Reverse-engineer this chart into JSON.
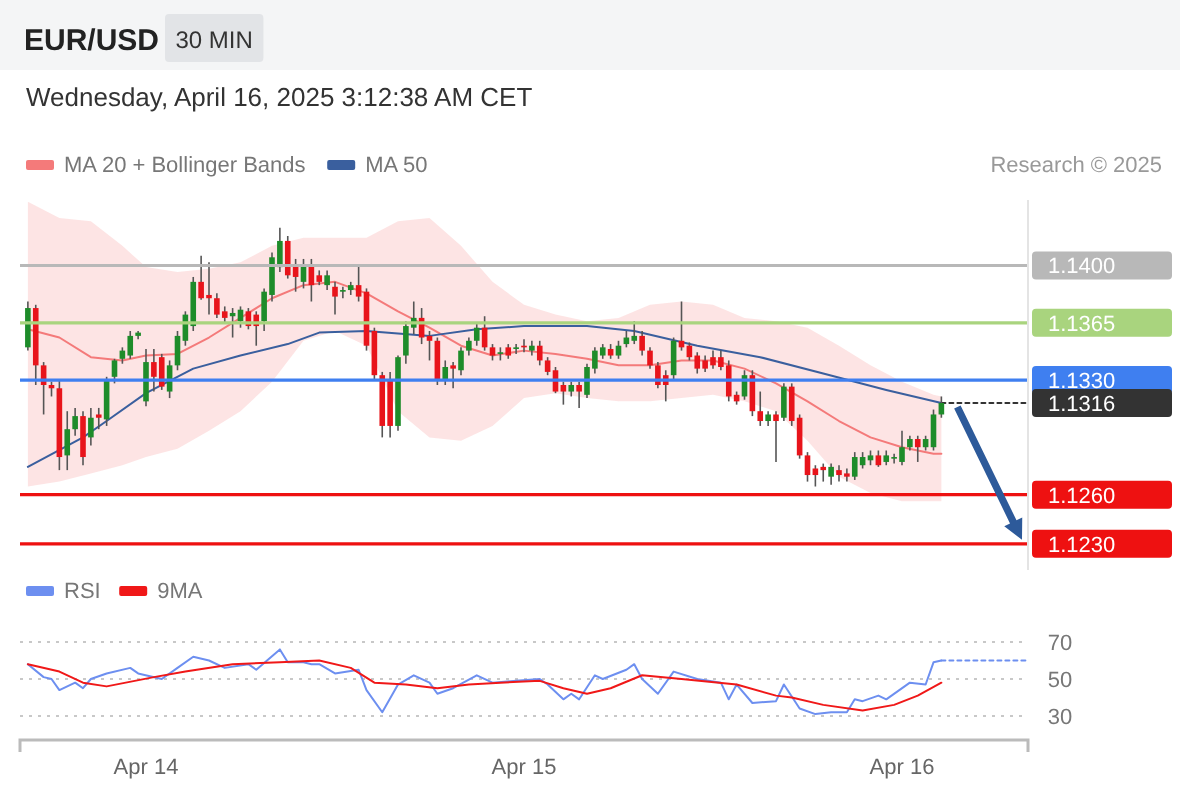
{
  "chart_data": [
    {
      "type": "candlestick",
      "title": "EUR/USD",
      "subtitle": "Wednesday, April 16, 2025 3:12:38 AM CET",
      "annotations": [
        "30 MIN",
        "Research © 2025"
      ],
      "x": [
        "2025-04-13T16:30",
        "2025-04-13T17:00",
        "2025-04-13T17:30",
        "2025-04-13T18:00",
        "2025-04-13T18:30",
        "2025-04-13T19:00",
        "2025-04-13T19:30",
        "2025-04-13T20:00",
        "2025-04-13T20:30",
        "2025-04-13T21:00",
        "2025-04-13T21:30",
        "2025-04-13T22:00",
        "2025-04-13T22:30",
        "2025-04-13T23:00",
        "2025-04-13T23:30",
        "2025-04-14T00:00",
        "2025-04-14T00:30",
        "2025-04-14T01:00",
        "2025-04-14T01:30",
        "2025-04-14T02:00",
        "2025-04-14T02:30",
        "2025-04-14T03:00",
        "2025-04-14T03:30",
        "2025-04-14T04:00",
        "2025-04-14T04:30",
        "2025-04-14T05:00",
        "2025-04-14T05:30",
        "2025-04-14T06:00",
        "2025-04-14T06:30",
        "2025-04-14T07:00",
        "2025-04-14T07:30",
        "2025-04-14T08:00",
        "2025-04-14T08:30",
        "2025-04-14T09:00",
        "2025-04-14T09:30",
        "2025-04-14T10:00",
        "2025-04-14T10:30",
        "2025-04-14T11:00",
        "2025-04-14T11:30",
        "2025-04-14T12:00",
        "2025-04-14T12:30",
        "2025-04-14T13:00",
        "2025-04-14T13:30",
        "2025-04-14T14:00",
        "2025-04-14T14:30",
        "2025-04-14T15:00",
        "2025-04-14T15:30",
        "2025-04-14T16:00",
        "2025-04-14T16:30",
        "2025-04-14T17:00",
        "2025-04-14T17:30",
        "2025-04-14T18:00",
        "2025-04-14T18:30",
        "2025-04-14T19:00",
        "2025-04-14T19:30",
        "2025-04-14T20:00",
        "2025-04-14T20:30",
        "2025-04-14T21:00",
        "2025-04-14T21:30",
        "2025-04-14T22:00",
        "2025-04-14T22:30",
        "2025-04-14T23:00",
        "2025-04-14T23:30",
        "2025-04-15T00:00",
        "2025-04-15T00:30",
        "2025-04-15T01:00",
        "2025-04-15T01:30",
        "2025-04-15T02:00",
        "2025-04-15T02:30",
        "2025-04-15T03:00",
        "2025-04-15T03:30",
        "2025-04-15T04:00",
        "2025-04-15T04:30",
        "2025-04-15T05:00",
        "2025-04-15T05:30",
        "2025-04-15T06:00",
        "2025-04-15T06:30",
        "2025-04-15T07:00",
        "2025-04-15T07:30",
        "2025-04-15T08:00",
        "2025-04-15T08:30",
        "2025-04-15T09:00",
        "2025-04-15T09:30",
        "2025-04-15T10:00",
        "2025-04-15T10:30",
        "2025-04-15T11:00",
        "2025-04-15T11:30",
        "2025-04-15T12:00",
        "2025-04-15T12:30",
        "2025-04-15T13:00",
        "2025-04-15T13:30",
        "2025-04-15T14:00",
        "2025-04-15T14:30",
        "2025-04-15T15:00",
        "2025-04-15T15:30",
        "2025-04-15T16:00",
        "2025-04-15T16:30",
        "2025-04-15T17:00",
        "2025-04-15T17:30",
        "2025-04-15T18:00",
        "2025-04-15T18:30",
        "2025-04-15T19:00",
        "2025-04-15T19:30",
        "2025-04-15T20:00",
        "2025-04-15T20:30",
        "2025-04-15T21:00",
        "2025-04-15T21:30",
        "2025-04-15T22:00",
        "2025-04-15T22:30",
        "2025-04-15T23:00",
        "2025-04-15T23:30",
        "2025-04-16T00:00",
        "2025-04-16T00:30",
        "2025-04-16T01:00",
        "2025-04-16T01:30",
        "2025-04-16T02:00",
        "2025-04-16T02:30"
      ],
      "ohlc": [
        [
          1.135,
          1.1378,
          1.1348,
          1.1374
        ],
        [
          1.1374,
          1.1376,
          1.1327,
          1.1339
        ],
        [
          1.1339,
          1.1341,
          1.1309,
          1.1327
        ],
        [
          1.1327,
          1.1329,
          1.132,
          1.1325
        ],
        [
          1.1325,
          1.133,
          1.1275,
          1.1283
        ],
        [
          1.1284,
          1.1311,
          1.1275,
          1.13
        ],
        [
          1.13,
          1.1313,
          1.1296,
          1.1308
        ],
        [
          1.1308,
          1.1311,
          1.1278,
          1.1283
        ],
        [
          1.1295,
          1.1313,
          1.129,
          1.1307
        ],
        [
          1.1309,
          1.1313,
          1.13,
          1.1307
        ],
        [
          1.1306,
          1.1332,
          1.1302,
          1.133
        ],
        [
          1.1332,
          1.1343,
          1.1328,
          1.1342
        ],
        [
          1.1343,
          1.135,
          1.134,
          1.1348
        ],
        [
          1.1345,
          1.136,
          1.1343,
          1.1357
        ],
        [
          1.1357,
          1.136,
          1.1355,
          1.1359
        ],
        [
          1.1317,
          1.1349,
          1.1314,
          1.1341
        ],
        [
          1.1341,
          1.1349,
          1.1323,
          1.1332
        ],
        [
          1.1344,
          1.1346,
          1.1324,
          1.1326
        ],
        [
          1.1323,
          1.1342,
          1.1319,
          1.1339
        ],
        [
          1.1339,
          1.136,
          1.1336,
          1.1357
        ],
        [
          1.1354,
          1.1372,
          1.1351,
          1.137
        ],
        [
          1.1363,
          1.1393,
          1.136,
          1.139
        ],
        [
          1.139,
          1.1406,
          1.1379,
          1.138
        ],
        [
          1.1382,
          1.1402,
          1.137,
          1.138
        ],
        [
          1.138,
          1.1383,
          1.1368,
          1.137
        ],
        [
          1.1372,
          1.1375,
          1.1365,
          1.1368
        ],
        [
          1.1369,
          1.1374,
          1.1356,
          1.1371
        ],
        [
          1.1366,
          1.1375,
          1.1362,
          1.1373
        ],
        [
          1.1372,
          1.1374,
          1.1361,
          1.1363
        ],
        [
          1.137,
          1.1372,
          1.1351,
          1.1363
        ],
        [
          1.1366,
          1.1386,
          1.136,
          1.1384
        ],
        [
          1.1382,
          1.1408,
          1.1378,
          1.1405
        ],
        [
          1.1399,
          1.1423,
          1.1396,
          1.1415
        ],
        [
          1.1415,
          1.1418,
          1.1392,
          1.1394
        ],
        [
          1.14,
          1.1404,
          1.1384,
          1.1393
        ],
        [
          1.139,
          1.1404,
          1.1386,
          1.14
        ],
        [
          1.14,
          1.1404,
          1.1378,
          1.1388
        ],
        [
          1.1394,
          1.1397,
          1.1388,
          1.139
        ],
        [
          1.1388,
          1.1397,
          1.1385,
          1.1394
        ],
        [
          1.1387,
          1.139,
          1.137,
          1.1381
        ],
        [
          1.1384,
          1.1387,
          1.138,
          1.1385
        ],
        [
          1.1385,
          1.139,
          1.1382,
          1.1388
        ],
        [
          1.1388,
          1.14,
          1.1378,
          1.1381
        ],
        [
          1.1384,
          1.1386,
          1.1348,
          1.1351
        ],
        [
          1.136,
          1.1362,
          1.133,
          1.1333
        ],
        [
          1.1333,
          1.1335,
          1.1295,
          1.1302
        ],
        [
          1.133,
          1.1335,
          1.1295,
          1.1302
        ],
        [
          1.1302,
          1.1345,
          1.1299,
          1.1344
        ],
        [
          1.1345,
          1.1366,
          1.134,
          1.1363
        ],
        [
          1.1362,
          1.1378,
          1.1358,
          1.1368
        ],
        [
          1.1368,
          1.1374,
          1.1352,
          1.1356
        ],
        [
          1.1357,
          1.136,
          1.1342,
          1.1354
        ],
        [
          1.1354,
          1.1356,
          1.1327,
          1.133
        ],
        [
          1.133,
          1.1342,
          1.1327,
          1.1338
        ],
        [
          1.1339,
          1.1341,
          1.1325,
          1.1337
        ],
        [
          1.1336,
          1.135,
          1.1333,
          1.1348
        ],
        [
          1.1348,
          1.1356,
          1.1345,
          1.1354
        ],
        [
          1.1354,
          1.1365,
          1.1351,
          1.1362
        ],
        [
          1.1362,
          1.1369,
          1.1348,
          1.135
        ],
        [
          1.135,
          1.1352,
          1.1342,
          1.1345
        ],
        [
          1.1346,
          1.135,
          1.1342,
          1.1347
        ],
        [
          1.135,
          1.1352,
          1.1343,
          1.1345
        ],
        [
          1.1349,
          1.1352,
          1.1346,
          1.135
        ],
        [
          1.1351,
          1.1355,
          1.1347,
          1.135
        ],
        [
          1.1348,
          1.1354,
          1.1345,
          1.1351
        ],
        [
          1.1351,
          1.1354,
          1.1339,
          1.1342
        ],
        [
          1.1342,
          1.1344,
          1.1333,
          1.1335
        ],
        [
          1.1336,
          1.1338,
          1.1322,
          1.1323
        ],
        [
          1.1327,
          1.1329,
          1.1315,
          1.1323
        ],
        [
          1.1323,
          1.1329,
          1.132,
          1.1327
        ],
        [
          1.1327,
          1.1329,
          1.1313,
          1.1323
        ],
        [
          1.1321,
          1.134,
          1.1319,
          1.1338
        ],
        [
          1.1337,
          1.135,
          1.1334,
          1.1348
        ],
        [
          1.1345,
          1.1352,
          1.1343,
          1.135
        ],
        [
          1.1349,
          1.1352,
          1.1343,
          1.1345
        ],
        [
          1.1345,
          1.1354,
          1.1343,
          1.1351
        ],
        [
          1.1352,
          1.136,
          1.135,
          1.1356
        ],
        [
          1.1354,
          1.1366,
          1.1352,
          1.1357
        ],
        [
          1.1357,
          1.136,
          1.1345,
          1.1348
        ],
        [
          1.1348,
          1.135,
          1.1337,
          1.1339
        ],
        [
          1.1339,
          1.1341,
          1.1325,
          1.1327
        ],
        [
          1.1333,
          1.1336,
          1.1317,
          1.1327
        ],
        [
          1.1333,
          1.1356,
          1.133,
          1.1354
        ],
        [
          1.1354,
          1.1378,
          1.1348,
          1.135
        ],
        [
          1.1351,
          1.1353,
          1.1342,
          1.1344
        ],
        [
          1.1345,
          1.1347,
          1.1334,
          1.1337
        ],
        [
          1.1342,
          1.1345,
          1.1335,
          1.1337
        ],
        [
          1.1344,
          1.1348,
          1.1337,
          1.1339
        ],
        [
          1.1344,
          1.1348,
          1.1336,
          1.1338
        ],
        [
          1.1339,
          1.1342,
          1.1317,
          1.132
        ],
        [
          1.1321,
          1.1323,
          1.1315,
          1.1317
        ],
        [
          1.132,
          1.1336,
          1.1318,
          1.1333
        ],
        [
          1.1333,
          1.1336,
          1.1308,
          1.1311
        ],
        [
          1.1311,
          1.1323,
          1.1302,
          1.1305
        ],
        [
          1.1305,
          1.1311,
          1.1302,
          1.1309
        ],
        [
          1.1309,
          1.1311,
          1.128,
          1.1305
        ],
        [
          1.1307,
          1.1328,
          1.1305,
          1.1326
        ],
        [
          1.1326,
          1.1328,
          1.1302,
          1.1305
        ],
        [
          1.1307,
          1.1309,
          1.1282,
          1.1284
        ],
        [
          1.1284,
          1.1286,
          1.1268,
          1.1272
        ],
        [
          1.1276,
          1.1278,
          1.1265,
          1.1272
        ],
        [
          1.1277,
          1.1279,
          1.1268,
          1.1275
        ],
        [
          1.1271,
          1.1279,
          1.1266,
          1.1277
        ],
        [
          1.1275,
          1.1278,
          1.1268,
          1.1272
        ],
        [
          1.1273,
          1.1276,
          1.1268,
          1.1271
        ],
        [
          1.1271,
          1.1286,
          1.1269,
          1.1283
        ],
        [
          1.1278,
          1.1286,
          1.1276,
          1.1283
        ],
        [
          1.1281,
          1.1287,
          1.1278,
          1.1284
        ],
        [
          1.1284,
          1.1287,
          1.1277,
          1.1278
        ],
        [
          1.128,
          1.1287,
          1.1278,
          1.1284
        ],
        [
          1.1282,
          1.1285,
          1.1279,
          1.1283
        ],
        [
          1.128,
          1.1299,
          1.1278,
          1.1289
        ],
        [
          1.1289,
          1.1296,
          1.1287,
          1.1294
        ],
        [
          1.1294,
          1.1296,
          1.128,
          1.1289
        ],
        [
          1.1289,
          1.1296,
          1.1287,
          1.1294
        ],
        [
          1.1289,
          1.1312,
          1.1287,
          1.1309
        ],
        [
          1.1309,
          1.132,
          1.1307,
          1.1316
        ]
      ],
      "series": [
        {
          "name": "MA 20 + Bollinger Bands",
          "type": "line",
          "color": "#f47a7a",
          "x": [
            "2025-04-13T16:30",
            "2025-04-13T18:30",
            "2025-04-13T20:30",
            "2025-04-13T22:30",
            "2025-04-14T00:00",
            "2025-04-14T02:00",
            "2025-04-14T04:00",
            "2025-04-14T06:00",
            "2025-04-14T08:00",
            "2025-04-14T10:00",
            "2025-04-14T12:00",
            "2025-04-14T14:00",
            "2025-04-14T16:00",
            "2025-04-14T18:00",
            "2025-04-14T20:00",
            "2025-04-14T22:00",
            "2025-04-15T00:00",
            "2025-04-15T02:00",
            "2025-04-15T04:00",
            "2025-04-15T06:00",
            "2025-04-15T08:00",
            "2025-04-15T10:00",
            "2025-04-15T12:00",
            "2025-04-15T14:00",
            "2025-04-15T16:00",
            "2025-04-15T18:00",
            "2025-04-15T20:00",
            "2025-04-15T22:00",
            "2025-04-16T00:00",
            "2025-04-16T02:00",
            "2025-04-16T02:30"
          ],
          "values": [
            1.1361,
            1.1356,
            1.1344,
            1.1342,
            1.1345,
            1.1346,
            1.1356,
            1.1368,
            1.138,
            1.1388,
            1.139,
            1.1383,
            1.1372,
            1.1362,
            1.1351,
            1.1345,
            1.1348,
            1.1346,
            1.1343,
            1.1339,
            1.1339,
            1.1342,
            1.1342,
            1.1337,
            1.1328,
            1.1317,
            1.1305,
            1.1295,
            1.1289,
            1.1285,
            1.1285
          ],
          "upper": [
            1.1439,
            1.1429,
            1.1427,
            1.1412,
            1.1399,
            1.1396,
            1.1398,
            1.1402,
            1.1412,
            1.1417,
            1.1417,
            1.1417,
            1.1427,
            1.1429,
            1.1412,
            1.139,
            1.1376,
            1.137,
            1.1366,
            1.1368,
            1.1376,
            1.1378,
            1.1376,
            1.1368,
            1.1366,
            1.1362,
            1.1351,
            1.1339,
            1.1329,
            1.1321,
            1.132
          ],
          "lower": [
            1.1265,
            1.1268,
            1.1273,
            1.1278,
            1.1283,
            1.1288,
            1.1299,
            1.1311,
            1.1329,
            1.1354,
            1.136,
            1.1351,
            1.1311,
            1.1295,
            1.1293,
            1.1302,
            1.1319,
            1.1322,
            1.1319,
            1.1317,
            1.1317,
            1.1319,
            1.1321,
            1.1317,
            1.1311,
            1.1293,
            1.1271,
            1.1261,
            1.1256,
            1.1256,
            1.1256
          ]
        },
        {
          "name": "MA 50",
          "type": "line",
          "color": "#3a5f9e",
          "x": [
            "2025-04-13T16:30",
            "2025-04-13T20:00",
            "2025-04-13T21:30",
            "2025-04-14T00:00",
            "2025-04-14T03:00",
            "2025-04-14T06:00",
            "2025-04-14T09:00",
            "2025-04-14T11:00",
            "2025-04-14T14:00",
            "2025-04-14T18:00",
            "2025-04-14T21:00",
            "2025-04-15T00:00",
            "2025-04-15T04:00",
            "2025-04-15T07:00",
            "2025-04-15T11:00",
            "2025-04-15T15:00",
            "2025-04-15T19:00",
            "2025-04-15T23:00",
            "2025-04-16T02:30"
          ],
          "values": [
            1.1277,
            1.1295,
            1.1305,
            1.1322,
            1.1337,
            1.1345,
            1.1352,
            1.1359,
            1.136,
            1.1357,
            1.1361,
            1.1363,
            1.1363,
            1.136,
            1.1351,
            1.1344,
            1.1334,
            1.1324,
            1.1316
          ]
        },
        {
          "type": "line",
          "color": "#333333",
          "line_style": "dotted",
          "x": [
            "2025-04-16T02:30",
            "2025-04-16T08:00"
          ],
          "values": [
            1.1316,
            1.1316
          ]
        }
      ],
      "xlim": [
        "2025-04-13T16:00",
        "2025-04-16T08:00"
      ],
      "ylim": [
        1.1214,
        1.144
      ],
      "yticks": [
        {
          "value": 1.14,
          "label": "1.1400"
        },
        {
          "value": 1.1365,
          "label": "1.1365"
        },
        {
          "value": 1.133,
          "label": "1.1330"
        },
        {
          "value": 1.1316,
          "label": "1.1316"
        },
        {
          "value": 1.126,
          "label": "1.1260"
        },
        {
          "value": 1.123,
          "label": "1.1230"
        }
      ],
      "ref_lines": [
        {
          "axis": "y",
          "value": 1.14,
          "color": "#b8b8b8"
        },
        {
          "axis": "y",
          "value": 1.1365,
          "color": "#a9d47e"
        },
        {
          "axis": "y",
          "value": 1.133,
          "color": "#3f7ff0"
        },
        {
          "axis": "y",
          "value": 1.126,
          "color": "#ee1111"
        },
        {
          "axis": "y",
          "value": 1.123,
          "color": "#ee1111"
        }
      ],
      "legend": "top left",
      "tick_labels": "y"
    },
    {
      "type": "line",
      "series": [
        {
          "name": "RSI",
          "color": "#6d8ff0",
          "x": [
            "2025-04-13T16:30",
            "2025-04-13T17:30",
            "2025-04-13T18:00",
            "2025-04-13T18:30",
            "2025-04-13T19:30",
            "2025-04-13T20:00",
            "2025-04-13T20:30",
            "2025-04-13T21:30",
            "2025-04-13T23:00",
            "2025-04-13T23:30",
            "2025-04-14T01:00",
            "2025-04-14T02:00",
            "2025-04-14T03:00",
            "2025-04-14T04:00",
            "2025-04-14T05:00",
            "2025-04-14T06:30",
            "2025-04-14T07:00",
            "2025-04-14T08:30",
            "2025-04-14T09:00",
            "2025-04-14T10:00",
            "2025-04-14T10:30",
            "2025-04-14T11:00",
            "2025-04-14T12:00",
            "2025-04-14T13:30",
            "2025-04-14T14:00",
            "2025-04-14T15:00",
            "2025-04-14T16:00",
            "2025-04-14T17:00",
            "2025-04-14T18:00",
            "2025-04-14T18:30",
            "2025-04-14T19:30",
            "2025-04-14T21:00",
            "2025-04-14T22:00",
            "2025-04-14T23:30",
            "2025-04-15T01:00",
            "2025-04-15T01:30",
            "2025-04-15T02:30",
            "2025-04-15T03:00",
            "2025-04-15T03:30",
            "2025-04-15T04:30",
            "2025-04-15T05:00",
            "2025-04-15T06:30",
            "2025-04-15T07:00",
            "2025-04-15T07:30",
            "2025-04-15T08:30",
            "2025-04-15T09:30",
            "2025-04-15T11:00",
            "2025-04-15T12:30",
            "2025-04-15T13:00",
            "2025-04-15T13:30",
            "2025-04-15T14:30",
            "2025-04-15T16:00",
            "2025-04-15T16:30",
            "2025-04-15T17:30",
            "2025-04-15T18:30",
            "2025-04-15T19:30",
            "2025-04-15T20:30",
            "2025-04-15T21:00",
            "2025-04-15T21:30",
            "2025-04-15T22:30",
            "2025-04-15T23:00",
            "2025-04-16T00:30",
            "2025-04-16T01:30",
            "2025-04-16T02:00",
            "2025-04-16T02:30"
          ],
          "values": [
            58,
            51,
            50,
            44,
            48,
            45,
            50,
            53,
            56,
            53,
            50,
            56,
            62,
            60,
            56,
            58,
            55,
            66,
            59,
            59,
            58,
            58,
            53,
            55,
            44,
            32,
            47,
            52,
            48,
            42,
            45,
            52,
            48,
            49,
            50,
            47,
            39,
            42,
            39,
            52,
            50,
            55,
            58,
            50,
            42,
            54,
            50,
            48,
            39,
            47,
            37,
            38,
            47,
            34,
            31,
            32,
            32,
            39,
            38,
            41,
            39,
            48,
            47,
            59,
            60
          ]
        },
        {
          "name": "9MA",
          "color": "#f01818",
          "x": [
            "2025-04-13T16:30",
            "2025-04-13T18:30",
            "2025-04-13T20:00",
            "2025-04-13T21:30",
            "2025-04-14T00:30",
            "2025-04-14T02:30",
            "2025-04-14T05:30",
            "2025-04-14T08:30",
            "2025-04-14T11:00",
            "2025-04-14T13:00",
            "2025-04-14T14:30",
            "2025-04-14T16:30",
            "2025-04-14T18:30",
            "2025-04-14T20:30",
            "2025-04-14T22:30",
            "2025-04-15T01:00",
            "2025-04-15T02:30",
            "2025-04-15T04:00",
            "2025-04-15T05:30",
            "2025-04-15T07:30",
            "2025-04-15T10:00",
            "2025-04-15T13:30",
            "2025-04-15T16:00",
            "2025-04-15T17:00",
            "2025-04-15T19:00",
            "2025-04-15T21:30",
            "2025-04-15T23:30",
            "2025-04-16T01:00",
            "2025-04-16T02:30"
          ],
          "values": [
            58,
            54,
            48,
            46,
            51,
            54,
            58,
            59,
            60,
            56,
            48,
            47,
            45,
            47,
            48,
            49,
            45,
            42,
            45,
            52,
            50,
            47,
            41,
            40,
            36,
            33,
            36,
            41,
            48
          ]
        },
        {
          "color": "#6d8ff0",
          "line_style": "dotted",
          "x": [
            "2025-04-16T02:30",
            "2025-04-16T08:00"
          ],
          "values": [
            60,
            60
          ]
        }
      ],
      "xlim": [
        "2025-04-13T16:00",
        "2025-04-16T08:00"
      ],
      "xticks": [
        {
          "value": "2025-04-14",
          "label": "Apr 14"
        },
        {
          "value": "2025-04-15",
          "label": "Apr 15"
        },
        {
          "value": "2025-04-16",
          "label": "Apr 16"
        }
      ],
      "ylim": [
        17,
        70
      ],
      "yticks": [
        30,
        50,
        70
      ],
      "grid": "y",
      "legend": "top left"
    }
  ]
}
